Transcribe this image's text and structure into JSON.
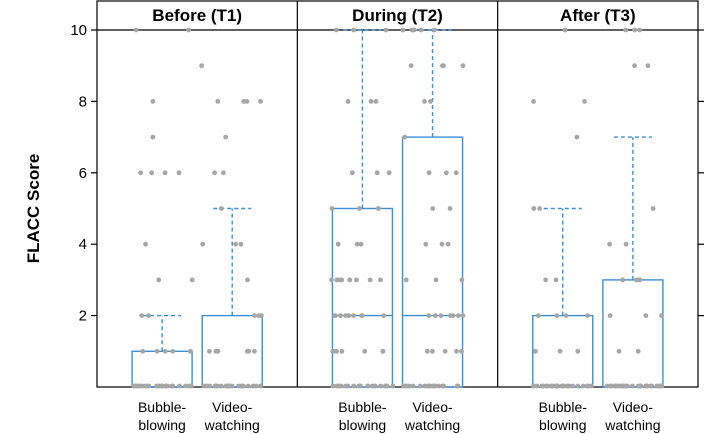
{
  "chart_data": {
    "type": "boxplot",
    "ylabel": "FLACC Score",
    "ylim": [
      0,
      10
    ],
    "yticks": [
      2,
      4,
      6,
      8,
      10
    ],
    "grid": false,
    "categories": [
      "Bubble-blowing",
      "Video-watching"
    ],
    "category_labels": [
      [
        "Bubble-",
        "blowing"
      ],
      [
        "Video-",
        "watching"
      ]
    ],
    "colors": {
      "box": "#3a8fd6",
      "points": "#a6a6a6",
      "frame": "#000000"
    },
    "panels": [
      {
        "title": "Before (T1)",
        "groups": [
          {
            "category": "Bubble-blowing",
            "box": {
              "q1": 0,
              "median": 0,
              "q3": 1,
              "whisker_low": 0,
              "whisker_high": 2
            },
            "points": [
              0,
              0,
              0,
              0,
              0,
              0,
              0,
              0,
              0,
              0,
              0,
              0,
              0,
              0,
              0,
              0,
              0,
              0,
              0,
              0,
              0,
              0,
              0,
              0,
              0,
              0,
              1,
              1,
              1,
              1,
              1,
              2,
              2,
              3,
              3,
              4,
              6,
              6,
              6,
              6,
              7,
              8,
              10,
              10
            ]
          },
          {
            "category": "Video-watching",
            "box": {
              "q1": 0,
              "median": 0,
              "q3": 2,
              "whisker_low": 0,
              "whisker_high": 5
            },
            "points": [
              0,
              0,
              0,
              0,
              0,
              0,
              0,
              0,
              0,
              0,
              0,
              0,
              0,
              0,
              0,
              0,
              0,
              0,
              0,
              0,
              0,
              0,
              0,
              0,
              0,
              1,
              1,
              1,
              1,
              1,
              1,
              2,
              2,
              2,
              3,
              4,
              4,
              4,
              5,
              6,
              6,
              7,
              8,
              8,
              8,
              8,
              9
            ]
          }
        ]
      },
      {
        "title": "During (T2)",
        "groups": [
          {
            "category": "Bubble-blowing",
            "box": {
              "q1": 0,
              "median": 2,
              "q3": 5,
              "whisker_low": 0,
              "whisker_high": 10
            },
            "points": [
              0,
              0,
              0,
              0,
              0,
              0,
              0,
              0,
              0,
              0,
              0,
              0,
              0,
              0,
              0,
              0,
              0,
              0,
              0,
              0,
              1,
              1,
              1,
              1,
              1,
              1,
              1,
              2,
              2,
              2,
              2,
              2,
              2,
              2,
              2,
              2,
              3,
              3,
              3,
              3,
              3,
              3,
              3,
              3,
              4,
              4,
              4,
              5,
              5,
              5,
              6,
              6,
              6,
              8,
              8,
              8,
              10,
              10,
              10
            ]
          },
          {
            "category": "Video-watching",
            "box": {
              "q1": 0,
              "median": 2,
              "q3": 7,
              "whisker_low": 0,
              "whisker_high": 10
            },
            "points": [
              0,
              0,
              0,
              0,
              0,
              0,
              0,
              0,
              0,
              0,
              0,
              0,
              0,
              0,
              0,
              0,
              0,
              0,
              0,
              1,
              1,
              1,
              1,
              1,
              2,
              2,
              2,
              2,
              2,
              2,
              2,
              3,
              3,
              3,
              4,
              4,
              4,
              5,
              5,
              6,
              6,
              6,
              7,
              8,
              8,
              9,
              9,
              9,
              9,
              10,
              10,
              10,
              10,
              10
            ]
          }
        ]
      },
      {
        "title": "After (T3)",
        "groups": [
          {
            "category": "Bubble-blowing",
            "box": {
              "q1": 0,
              "median": 0,
              "q3": 2,
              "whisker_low": 0,
              "whisker_high": 5
            },
            "points": [
              0,
              0,
              0,
              0,
              0,
              0,
              0,
              0,
              0,
              0,
              0,
              0,
              0,
              0,
              0,
              0,
              0,
              0,
              0,
              0,
              0,
              0,
              0,
              0,
              0,
              0,
              1,
              1,
              1,
              2,
              2,
              2,
              2,
              3,
              3,
              5,
              5,
              7,
              8,
              8,
              10
            ]
          },
          {
            "category": "Video-watching",
            "box": {
              "q1": 0,
              "median": 0,
              "q3": 3,
              "whisker_low": 0,
              "whisker_high": 7
            },
            "points": [
              0,
              0,
              0,
              0,
              0,
              0,
              0,
              0,
              0,
              0,
              0,
              0,
              0,
              0,
              0,
              0,
              0,
              0,
              0,
              0,
              0,
              0,
              0,
              0,
              0,
              0,
              0,
              1,
              1,
              2,
              2,
              2,
              3,
              3,
              3,
              3,
              3,
              4,
              4,
              5,
              9,
              9,
              10,
              10,
              10
            ]
          }
        ]
      }
    ]
  }
}
